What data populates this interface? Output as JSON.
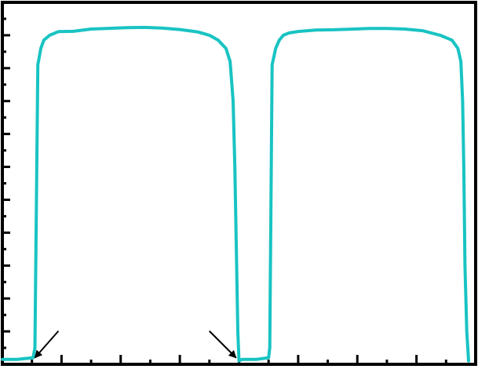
{
  "chart_data": {
    "type": "line",
    "title": "",
    "xlabel": "",
    "ylabel": "",
    "xlim": [
      0,
      8
    ],
    "ylim": [
      0,
      11
    ],
    "grid": false,
    "legend": "none",
    "x_ticks": [
      0,
      0.5,
      1,
      1.5,
      2,
      2.5,
      3,
      3.5,
      4,
      4.5,
      5,
      5.5,
      6,
      6.5,
      7,
      7.5,
      8
    ],
    "y_ticks": [
      0,
      0.5,
      1,
      1.5,
      2,
      2.5,
      3,
      3.5,
      4,
      4.5,
      5,
      5.5,
      6,
      6.5,
      7,
      7.5,
      8,
      8.5,
      9,
      9.5,
      10,
      10.5,
      11
    ],
    "series": [
      {
        "color": "#19c3c3",
        "x": [
          0,
          0.25,
          0.52,
          0.55,
          0.6,
          0.65,
          0.7,
          0.8,
          0.95,
          1.2,
          1.5,
          1.8,
          2.1,
          2.4,
          2.7,
          3.0,
          3.3,
          3.5,
          3.65,
          3.78,
          3.85,
          3.9,
          3.93,
          3.96,
          3.98,
          4.0,
          4.05,
          4.3,
          4.5,
          4.52,
          4.56,
          4.62,
          4.68,
          4.75,
          4.85,
          5.0,
          5.3,
          5.6,
          5.9,
          6.2,
          6.5,
          6.8,
          7.1,
          7.4,
          7.6,
          7.7,
          7.75,
          7.78,
          7.8,
          7.82,
          7.85,
          7.88
        ],
        "y": [
          0.15,
          0.15,
          0.2,
          0.5,
          9.1,
          9.6,
          9.85,
          10.0,
          10.1,
          10.15,
          10.2,
          10.2,
          10.2,
          10.2,
          10.18,
          10.15,
          10.1,
          10.0,
          9.85,
          9.6,
          9.2,
          8.0,
          6.0,
          3.0,
          1.0,
          0.1,
          0.15,
          0.15,
          0.2,
          0.5,
          9.1,
          9.6,
          9.85,
          10.0,
          10.1,
          10.15,
          10.2,
          10.2,
          10.2,
          10.2,
          10.18,
          10.15,
          10.1,
          10.0,
          9.85,
          9.6,
          9.2,
          8.0,
          6.0,
          3.0,
          1.0,
          0.1
        ]
      }
    ],
    "annotations": [
      {
        "type": "arrow",
        "x": 0.55,
        "y": 0.2,
        "direction": "down-left",
        "color": "#000000"
      },
      {
        "type": "arrow",
        "x": 3.95,
        "y": 0.2,
        "direction": "down-right",
        "color": "#000000"
      }
    ]
  }
}
